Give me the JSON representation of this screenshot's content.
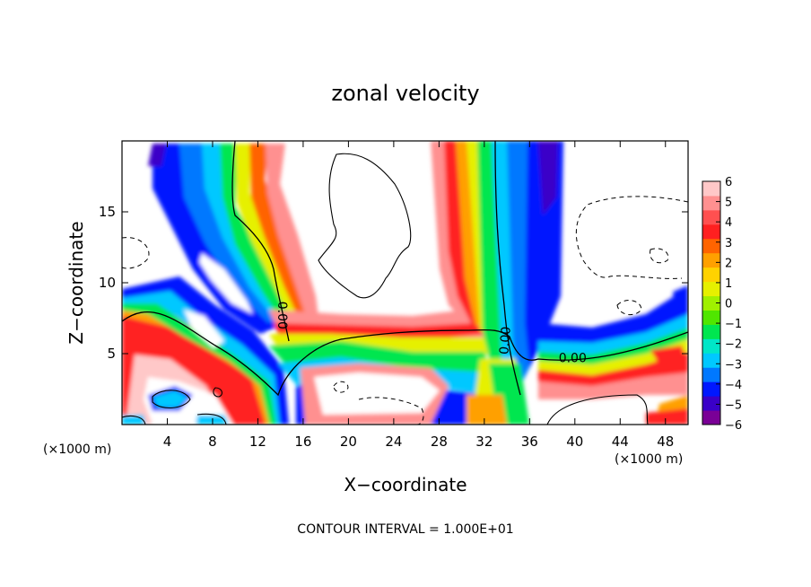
{
  "chart_data": {
    "type": "heatmap",
    "title": "zonal velocity",
    "xlabel": "X−coordinate",
    "ylabel": "Z−coordinate",
    "x_unit": "(×1000 m)",
    "y_unit": "(×1000 m)",
    "xlim": [
      0,
      50
    ],
    "ylim": [
      0,
      20
    ],
    "x_ticks": [
      4,
      8,
      12,
      16,
      20,
      24,
      28,
      32,
      36,
      40,
      44,
      48
    ],
    "x_tick_labels": [
      "4",
      "8",
      "12",
      "16",
      "20",
      "24",
      "28",
      "32",
      "36",
      "40",
      "44",
      "48"
    ],
    "y_ticks": [
      5,
      10,
      15
    ],
    "y_tick_labels": [
      "5",
      "10",
      "15"
    ],
    "colorbar": {
      "min": -6,
      "max": 6,
      "ticks": [
        6,
        5,
        4,
        3,
        2,
        1,
        0,
        -1,
        -2,
        -3,
        -4,
        -5,
        -6
      ],
      "tick_labels": [
        "6",
        "5",
        "4",
        "3",
        "2",
        "1",
        "0",
        "−1",
        "−2",
        "−3",
        "−4",
        "−5",
        "−6"
      ],
      "colors": [
        "#7a0096",
        "#3a00c8",
        "#0018ff",
        "#0078ff",
        "#00c8ff",
        "#00e6c8",
        "#00e650",
        "#50e600",
        "#a0f000",
        "#e6f000",
        "#ffd200",
        "#ffa000",
        "#ff6400",
        "#ff2020",
        "#ff5050",
        "#ff9090",
        "#ffc8c8"
      ]
    },
    "contour_labels": [
      {
        "text": "0.00",
        "x": 13.8,
        "y": 7.7,
        "angle": 90
      },
      {
        "text": "0.00",
        "x": 34.2,
        "y": 5.9,
        "angle": -85
      },
      {
        "text": "0.00",
        "x": 39.8,
        "y": 4.4,
        "angle": 0
      }
    ],
    "contour_interval_text": "CONTOUR INTERVAL =  1.000E+01"
  }
}
